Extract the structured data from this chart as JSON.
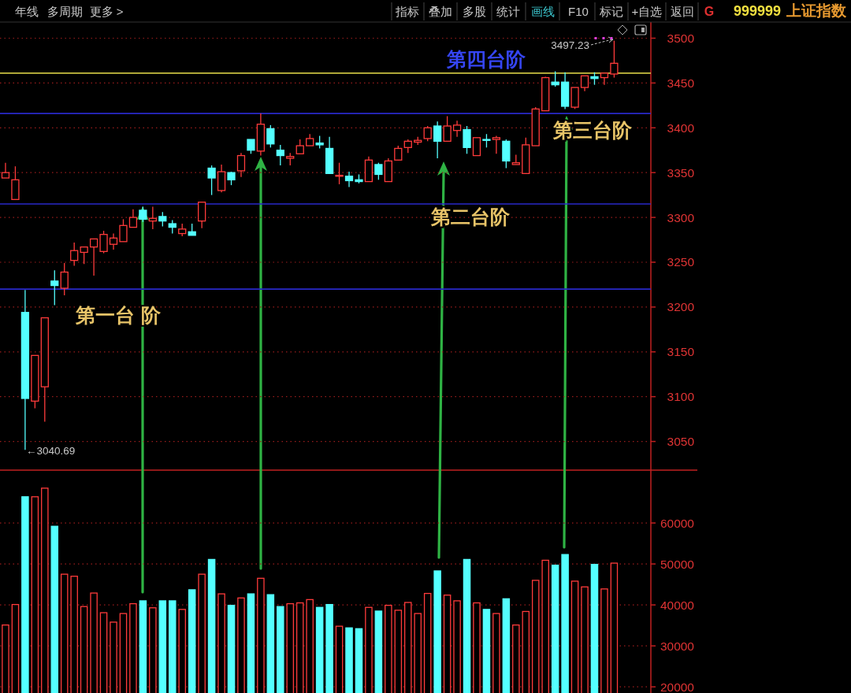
{
  "chart_data": [
    {
      "type": "candlestick",
      "categories": [
        null,
        null,
        null,
        null,
        null,
        null,
        null,
        null,
        null,
        null,
        null,
        null,
        null,
        null,
        null,
        null,
        null,
        null,
        null,
        null,
        null,
        null,
        null,
        null,
        null,
        null,
        null,
        null,
        null,
        null,
        null,
        null,
        null,
        null,
        null,
        null,
        null,
        null,
        null,
        null,
        null,
        null,
        null,
        null,
        null,
        null,
        null,
        null,
        null,
        null,
        null,
        null,
        null,
        null,
        null,
        null,
        null,
        null,
        null,
        null,
        null,
        null,
        null
      ],
      "ohlc": [
        [
          3344,
          3361,
          3344,
          3350
        ],
        [
          3320,
          3357,
          3320,
          3342
        ],
        [
          3194,
          3219,
          3040.69,
          3098
        ],
        [
          3095,
          3146,
          3087,
          3146
        ],
        [
          3111,
          3188,
          3072,
          3188
        ],
        [
          3229,
          3241,
          3202,
          3224
        ],
        [
          3221,
          3249,
          3213,
          3239
        ],
        [
          3252,
          3272,
          3246,
          3263
        ],
        [
          3261,
          3267,
          3248,
          3267
        ],
        [
          3267,
          3276,
          3235,
          3276
        ],
        [
          3262,
          3285,
          3260,
          3281
        ],
        [
          3270,
          3282,
          3264,
          3277
        ],
        [
          3273,
          3298,
          3273,
          3291
        ],
        [
          3289,
          3309,
          3289,
          3300
        ],
        [
          3308,
          3312,
          3295,
          3298
        ],
        [
          3296,
          3312,
          3287,
          3299
        ],
        [
          3301,
          3306,
          3290,
          3296
        ],
        [
          3293,
          3297,
          3282,
          3289
        ],
        [
          3282,
          3293,
          3279,
          3287
        ],
        [
          3284,
          3293,
          3280,
          3280
        ],
        [
          3296,
          3317,
          3288,
          3317
        ],
        [
          3355,
          3358,
          3325,
          3344
        ],
        [
          3330,
          3359,
          3328,
          3351
        ],
        [
          3350,
          3351,
          3336,
          3342
        ],
        [
          3352,
          3372,
          3345,
          3369
        ],
        [
          3387,
          3387,
          3371,
          3375
        ],
        [
          3374,
          3416,
          3369,
          3404
        ],
        [
          3399,
          3403,
          3378,
          3382
        ],
        [
          3375,
          3381,
          3358,
          3369
        ],
        [
          3366,
          3372,
          3358,
          3368
        ],
        [
          3371,
          3387,
          3371,
          3380
        ],
        [
          3380,
          3393,
          3380,
          3388
        ],
        [
          3383,
          3391,
          3377,
          3381
        ],
        [
          3377,
          3390,
          3349,
          3349
        ],
        [
          3346,
          3361,
          3337,
          3347
        ],
        [
          3346,
          3351,
          3334,
          3341
        ],
        [
          3342,
          3348,
          3338,
          3340
        ],
        [
          3340,
          3368,
          3340,
          3364
        ],
        [
          3359,
          3361,
          3342,
          3348
        ],
        [
          3340,
          3366,
          3340,
          3363
        ],
        [
          3364,
          3380,
          3364,
          3377
        ],
        [
          3378,
          3387,
          3372,
          3385
        ],
        [
          3384,
          3390,
          3381,
          3386
        ],
        [
          3388,
          3402,
          3385,
          3400
        ],
        [
          3402,
          3407,
          3366,
          3385
        ],
        [
          3385,
          3413,
          3385,
          3402
        ],
        [
          3397,
          3408,
          3390,
          3403
        ],
        [
          3398,
          3402,
          3371,
          3378
        ],
        [
          3369,
          3389,
          3369,
          3389
        ],
        [
          3387,
          3393,
          3378,
          3386
        ],
        [
          3387,
          3391,
          3371,
          3389
        ],
        [
          3385,
          3387,
          3355,
          3363
        ],
        [
          3359,
          3370,
          3359,
          3361
        ],
        [
          3349,
          3389,
          3349,
          3381
        ],
        [
          3380,
          3423,
          3380,
          3421
        ],
        [
          3419,
          3457,
          3419,
          3456
        ],
        [
          3451,
          3463,
          3446,
          3448
        ],
        [
          3451,
          3462,
          3421,
          3424
        ],
        [
          3423,
          3445,
          3421,
          3445
        ],
        [
          3445,
          3458,
          3441,
          3458
        ],
        [
          3457,
          3462,
          3448,
          3455
        ],
        [
          3456,
          3461,
          3448,
          3461
        ],
        [
          3460,
          3497.23,
          3456,
          3472
        ]
      ],
      "ylim": [
        3018,
        3518
      ],
      "yticks": [
        3050,
        3100,
        3150,
        3200,
        3250,
        3300,
        3350,
        3400,
        3450,
        3500
      ],
      "grid": "y",
      "tick_labels": "y",
      "ref_lines": [
        {
          "axis": "y",
          "value": 3220,
          "label": "第一台 阶",
          "color": "#2828c8"
        },
        {
          "axis": "y",
          "value": 3315,
          "label": "第二台阶",
          "color": "#2828c8"
        },
        {
          "axis": "y",
          "value": 3416,
          "label": "第三台阶",
          "color": "#2828c8"
        },
        {
          "axis": "y",
          "value": 3461,
          "label": "第四台阶",
          "color": "#c8c040"
        }
      ],
      "annotations": [
        "3497.23",
        "←3040.69",
        "年线",
        "多周期",
        "更多 >",
        "指标",
        "叠加",
        "多股",
        "统计",
        "画线",
        "F10",
        "标记",
        "+自选",
        "返回",
        "G",
        "999999",
        "上证指数"
      ]
    },
    {
      "type": "bar",
      "categories": [
        null,
        null,
        null,
        null,
        null,
        null,
        null,
        null,
        null,
        null,
        null,
        null,
        null,
        null,
        null,
        null,
        null,
        null,
        null,
        null,
        null,
        null,
        null,
        null,
        null,
        null,
        null,
        null,
        null,
        null,
        null,
        null,
        null,
        null,
        null,
        null,
        null,
        null,
        null,
        null,
        null,
        null,
        null,
        null,
        null,
        null,
        null,
        null,
        null,
        null,
        null,
        null,
        null,
        null,
        null,
        null,
        null,
        null,
        null,
        null,
        null,
        null,
        null
      ],
      "values": [
        35100,
        40100,
        66400,
        66400,
        68500,
        59200,
        47500,
        47000,
        39600,
        42900,
        38100,
        35800,
        37900,
        40300,
        41000,
        39300,
        41000,
        41000,
        38900,
        43700,
        47500,
        51100,
        42700,
        39900,
        41700,
        42700,
        46500,
        42500,
        39600,
        40300,
        40500,
        41300,
        39400,
        40100,
        34800,
        34400,
        34200,
        39400,
        38500,
        39900,
        38700,
        40600,
        37900,
        42800,
        48300,
        42400,
        41000,
        51100,
        40500,
        38900,
        37900,
        41500,
        35100,
        38400,
        46000,
        50900,
        49700,
        52300,
        45800,
        44400,
        49900,
        43900,
        50200
      ],
      "colors": [
        "#ff3b3b",
        "#ff3b3b",
        "#54ffff",
        "#ff3b3b",
        "#ff3b3b",
        "#54ffff",
        "#ff3b3b",
        "#ff3b3b",
        "#ff3b3b",
        "#ff3b3b",
        "#ff3b3b",
        "#ff3b3b",
        "#ff3b3b",
        "#ff3b3b",
        "#54ffff",
        "#ff3b3b",
        "#54ffff",
        "#54ffff",
        "#ff3b3b",
        "#54ffff",
        "#ff3b3b",
        "#54ffff",
        "#ff3b3b",
        "#54ffff",
        "#ff3b3b",
        "#54ffff",
        "#ff3b3b",
        "#54ffff",
        "#54ffff",
        "#ff3b3b",
        "#ff3b3b",
        "#ff3b3b",
        "#54ffff",
        "#54ffff",
        "#ff3b3b",
        "#54ffff",
        "#54ffff",
        "#ff3b3b",
        "#54ffff",
        "#ff3b3b",
        "#ff3b3b",
        "#ff3b3b",
        "#ff3b3b",
        "#ff3b3b",
        "#54ffff",
        "#ff3b3b",
        "#ff3b3b",
        "#54ffff",
        "#ff3b3b",
        "#54ffff",
        "#ff3b3b",
        "#54ffff",
        "#ff3b3b",
        "#ff3b3b",
        "#ff3b3b",
        "#ff3b3b",
        "#54ffff",
        "#54ffff",
        "#ff3b3b",
        "#ff3b3b",
        "#54ffff",
        "#ff3b3b",
        "#ff3b3b"
      ],
      "ylim": [
        18500,
        72900
      ],
      "yticks": [
        20000,
        30000,
        40000,
        50000,
        60000
      ],
      "grid": "y",
      "tick_labels": "y"
    }
  ]
}
